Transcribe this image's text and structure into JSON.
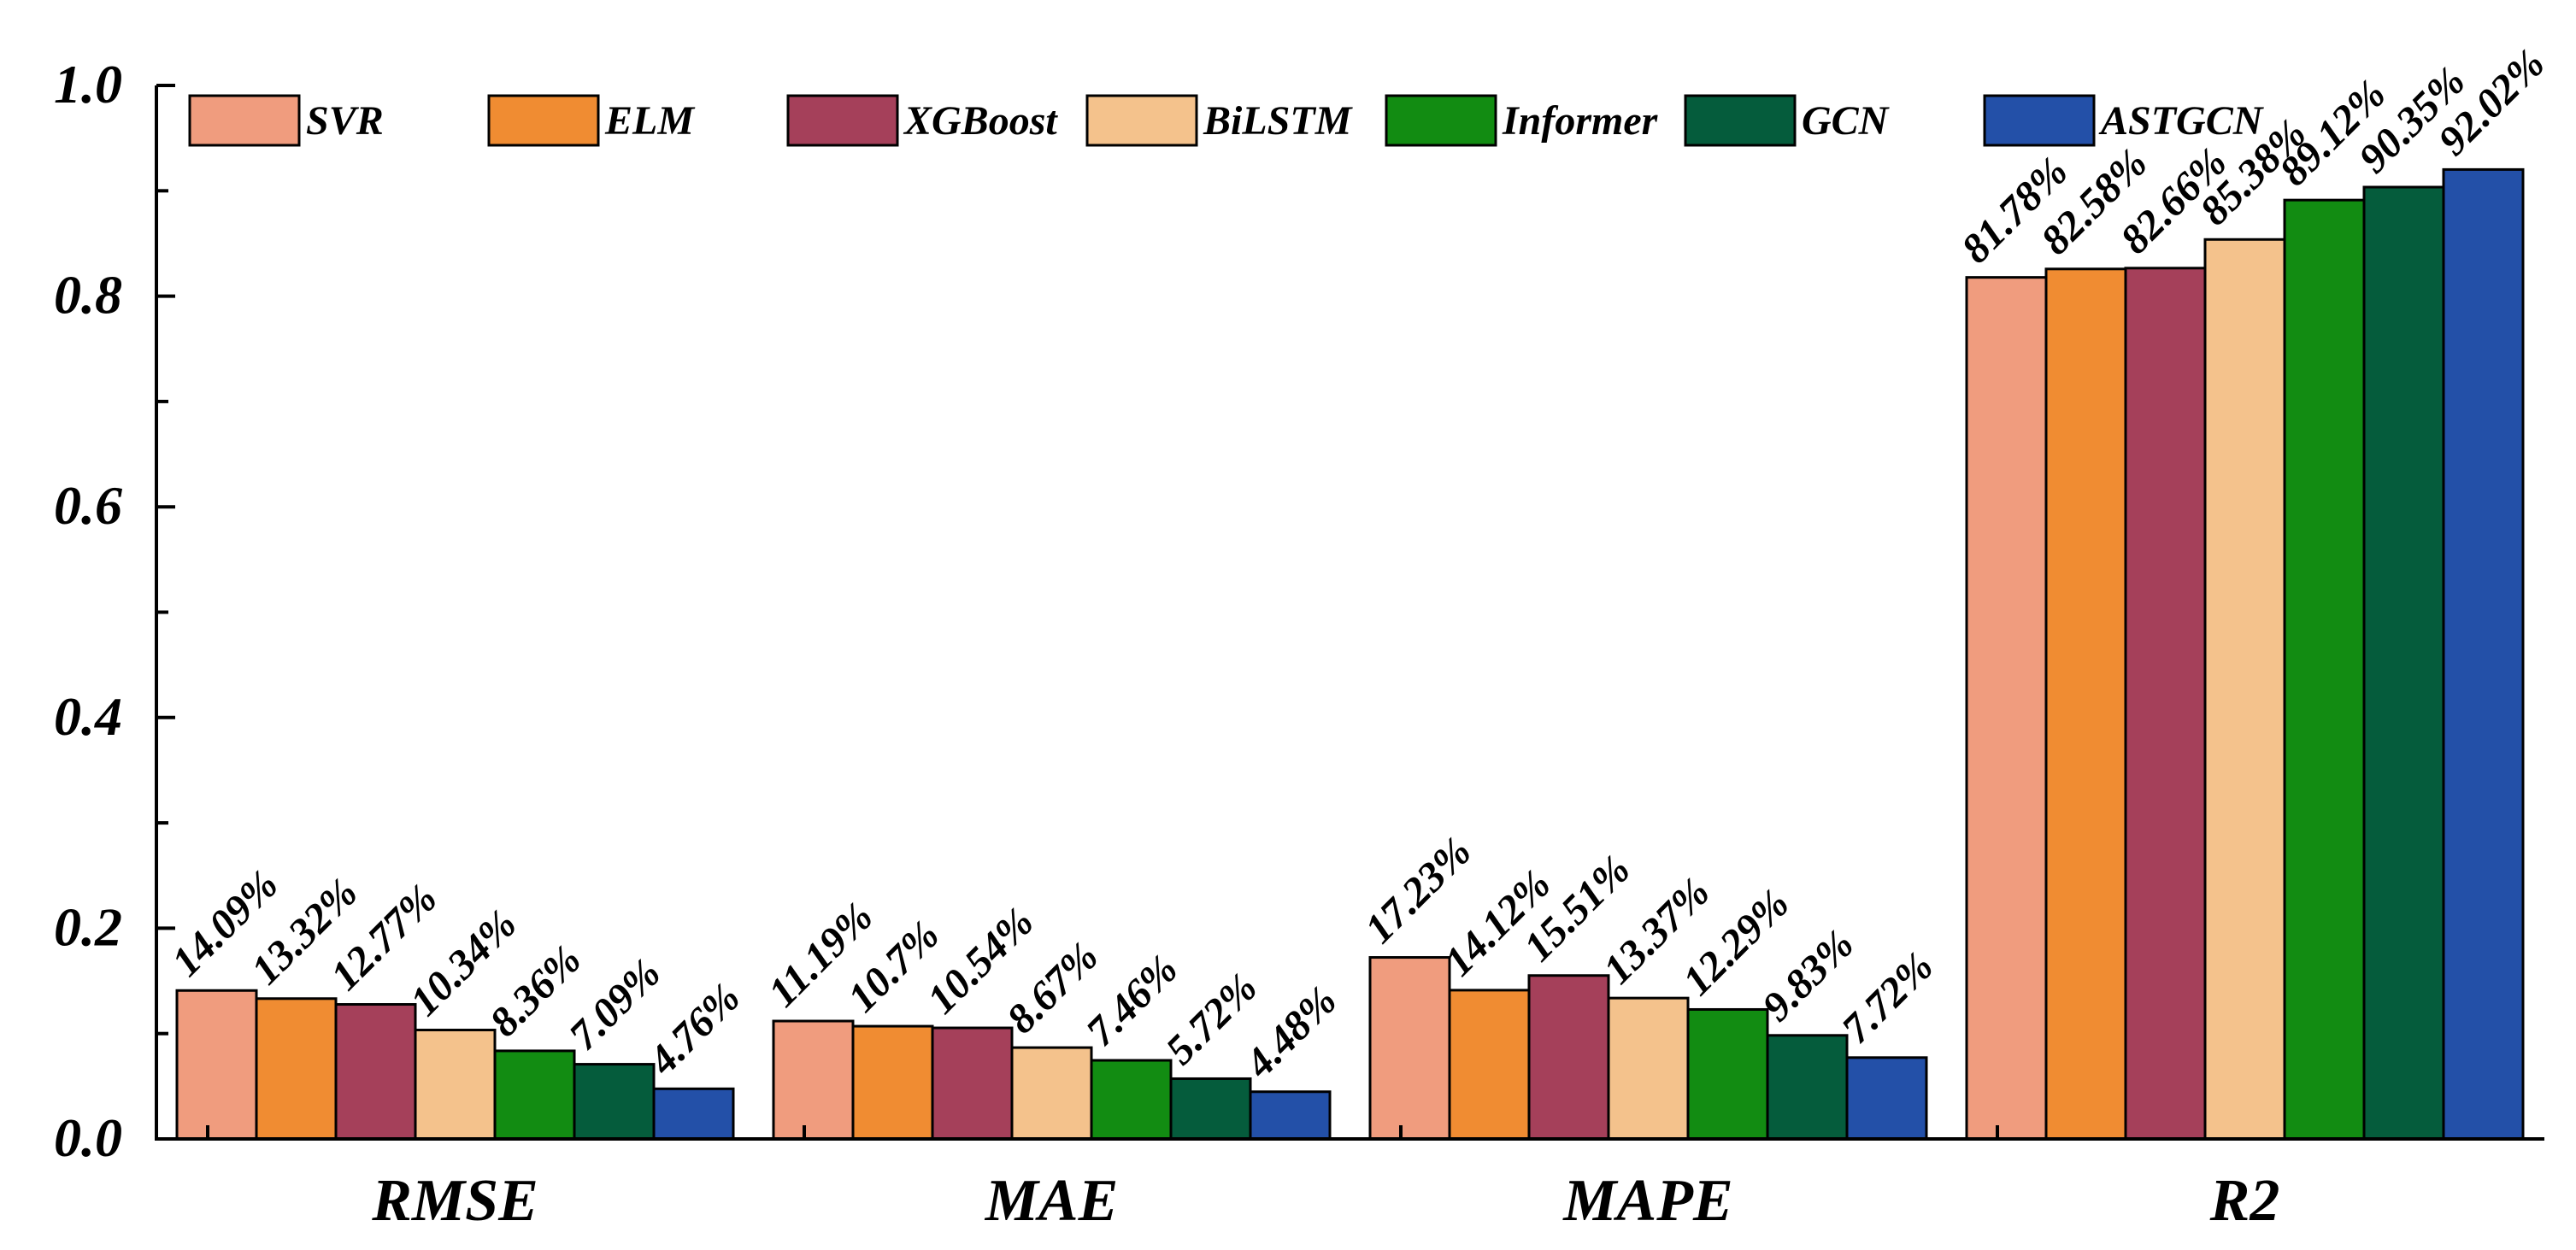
{
  "chart_data": {
    "type": "bar",
    "title": "",
    "xlabel": "",
    "ylabel": "",
    "ylim": [
      0,
      1.0
    ],
    "yticks": [
      "0.0",
      "0.2",
      "0.4",
      "0.6",
      "0.8",
      "1.0"
    ],
    "categories": [
      "RMSE",
      "MAE",
      "MAPE",
      "R2"
    ],
    "legend_position": "top",
    "series": [
      {
        "name": "SVR",
        "color": "#F09C7E",
        "values": [
          0.1409,
          0.1119,
          0.1723,
          0.8178
        ],
        "labels": [
          "14.09%",
          "11.19%",
          "17.23%",
          "81.78%"
        ]
      },
      {
        "name": "ELM",
        "color": "#F08C32",
        "values": [
          0.1332,
          0.107,
          0.1412,
          0.8258
        ],
        "labels": [
          "13.32%",
          "10.7%",
          "14.12%",
          "82.58%"
        ]
      },
      {
        "name": "XGBoost",
        "color": "#A5405A",
        "values": [
          0.1277,
          0.1054,
          0.1551,
          0.8266
        ],
        "labels": [
          "12.77%",
          "10.54%",
          "15.51%",
          "82.66%"
        ]
      },
      {
        "name": "BiLSTM",
        "color": "#F4C28C",
        "values": [
          0.1034,
          0.0867,
          0.1337,
          0.8538
        ],
        "labels": [
          "10.34%",
          "8.67%",
          "13.37%",
          "85.38%"
        ]
      },
      {
        "name": "Informer",
        "color": "#128C12",
        "values": [
          0.0836,
          0.0746,
          0.1229,
          0.8912
        ],
        "labels": [
          "8.36%",
          "7.46%",
          "12.29%",
          "89.12%"
        ]
      },
      {
        "name": "GCN",
        "color": "#055C3C",
        "values": [
          0.0709,
          0.0572,
          0.0983,
          0.9035
        ],
        "labels": [
          "7.09%",
          "5.72%",
          "9.83%",
          "90.35%"
        ]
      },
      {
        "name": "ASTGCN",
        "color": "#2350A8",
        "values": [
          0.0476,
          0.0448,
          0.0772,
          0.9202
        ],
        "labels": [
          "4.76%",
          "4.48%",
          "7.72%",
          "92.02%"
        ]
      }
    ]
  }
}
